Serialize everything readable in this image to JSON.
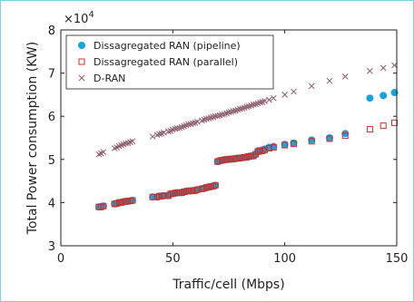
{
  "chart_data": {
    "type": "scatter",
    "xlabel": "Traffic/cell (Mbps)",
    "ylabel": "Total Power consumption (KW)",
    "y_multiplier": "×10",
    "y_multiplier_exp": "4",
    "xlim": [
      0,
      150
    ],
    "ylim": [
      3,
      8
    ],
    "xticks": [
      "0",
      "50",
      "100",
      "150"
    ],
    "yticks": [
      "3",
      "4",
      "5",
      "6",
      "7",
      "8"
    ],
    "grid": false,
    "legend_position": "top-left",
    "series": [
      {
        "name": "Dissagregated RAN (pipeline)",
        "marker": "filled-circle",
        "color": "#1aa3d9",
        "x": [
          17,
          18,
          19,
          24,
          25,
          26,
          27,
          28,
          29,
          30,
          31,
          32,
          41,
          43,
          44,
          45,
          46,
          48,
          49,
          50,
          51,
          52,
          53,
          54,
          55,
          56,
          57,
          58,
          59,
          60,
          61,
          63,
          64,
          65,
          66,
          67,
          68,
          69,
          70,
          71,
          72,
          73,
          74,
          75,
          76,
          77,
          78,
          79,
          80,
          81,
          82,
          83,
          84,
          85,
          86,
          87,
          88,
          89,
          90,
          91,
          93,
          95,
          100,
          104,
          112,
          120,
          127,
          138,
          144,
          149
        ],
        "y": [
          3.9,
          3.9,
          3.92,
          3.97,
          3.98,
          4.0,
          4.0,
          4.02,
          4.03,
          4.03,
          4.04,
          4.05,
          4.13,
          4.13,
          4.15,
          4.15,
          4.16,
          4.16,
          4.2,
          4.21,
          4.22,
          4.23,
          4.23,
          4.23,
          4.25,
          4.26,
          4.27,
          4.27,
          4.28,
          4.28,
          4.3,
          4.32,
          4.33,
          4.35,
          4.36,
          4.37,
          4.38,
          4.4,
          4.95,
          4.97,
          4.98,
          4.99,
          5.0,
          5.0,
          5.01,
          5.01,
          5.02,
          5.03,
          5.03,
          5.04,
          5.05,
          5.05,
          5.07,
          5.08,
          5.08,
          5.12,
          5.2,
          5.2,
          5.22,
          5.24,
          5.28,
          5.3,
          5.35,
          5.38,
          5.45,
          5.5,
          5.6,
          6.42,
          6.48,
          6.55
        ]
      },
      {
        "name": "Dissagregated RAN (parallel)",
        "marker": "open-square",
        "color": "#c8302a",
        "x": [
          17,
          18,
          19,
          24,
          25,
          26,
          27,
          28,
          29,
          30,
          31,
          32,
          41,
          43,
          44,
          45,
          46,
          48,
          49,
          50,
          51,
          52,
          53,
          54,
          55,
          56,
          57,
          58,
          59,
          60,
          61,
          63,
          64,
          65,
          66,
          67,
          68,
          69,
          70,
          71,
          72,
          73,
          74,
          75,
          76,
          77,
          78,
          79,
          80,
          81,
          82,
          83,
          84,
          85,
          86,
          87,
          88,
          89,
          90,
          91,
          93,
          95,
          100,
          104,
          112,
          120,
          127,
          138,
          144,
          149
        ],
        "y": [
          3.9,
          3.9,
          3.92,
          3.97,
          3.98,
          4.0,
          4.0,
          4.02,
          4.03,
          4.03,
          4.04,
          4.05,
          4.13,
          4.13,
          4.15,
          4.15,
          4.16,
          4.16,
          4.2,
          4.21,
          4.22,
          4.23,
          4.23,
          4.23,
          4.25,
          4.26,
          4.27,
          4.27,
          4.28,
          4.28,
          4.3,
          4.32,
          4.33,
          4.35,
          4.36,
          4.37,
          4.38,
          4.4,
          4.95,
          4.97,
          4.98,
          4.99,
          5.0,
          5.0,
          5.01,
          5.01,
          5.02,
          5.03,
          5.03,
          5.04,
          5.05,
          5.05,
          5.07,
          5.08,
          5.08,
          5.12,
          5.18,
          5.19,
          5.2,
          5.22,
          5.26,
          5.28,
          5.33,
          5.36,
          5.42,
          5.48,
          5.55,
          5.7,
          5.78,
          5.85
        ]
      },
      {
        "name": "D-RAN",
        "marker": "x",
        "color": "#8c5a6e",
        "x": [
          17,
          18,
          19,
          24,
          25,
          26,
          27,
          28,
          29,
          30,
          31,
          32,
          41,
          43,
          44,
          45,
          46,
          48,
          49,
          50,
          51,
          52,
          53,
          54,
          55,
          56,
          57,
          58,
          59,
          60,
          61,
          63,
          64,
          65,
          66,
          67,
          68,
          69,
          70,
          71,
          72,
          73,
          74,
          75,
          76,
          77,
          78,
          79,
          80,
          81,
          82,
          83,
          84,
          85,
          86,
          87,
          88,
          89,
          90,
          91,
          93,
          95,
          100,
          104,
          112,
          120,
          127,
          138,
          144,
          149
        ],
        "y": [
          5.12,
          5.14,
          5.17,
          5.26,
          5.28,
          5.31,
          5.33,
          5.35,
          5.37,
          5.38,
          5.4,
          5.42,
          5.53,
          5.57,
          5.59,
          5.6,
          5.62,
          5.65,
          5.66,
          5.69,
          5.71,
          5.72,
          5.73,
          5.75,
          5.77,
          5.79,
          5.81,
          5.82,
          5.84,
          5.85,
          5.87,
          5.9,
          5.92,
          5.94,
          5.95,
          5.97,
          5.98,
          6.0,
          6.01,
          6.02,
          6.04,
          6.05,
          6.07,
          6.09,
          6.1,
          6.12,
          6.13,
          6.15,
          6.17,
          6.18,
          6.2,
          6.22,
          6.23,
          6.25,
          6.27,
          6.28,
          6.3,
          6.32,
          6.33,
          6.35,
          6.38,
          6.42,
          6.5,
          6.57,
          6.7,
          6.82,
          6.92,
          7.05,
          7.12,
          7.18
        ]
      }
    ]
  }
}
